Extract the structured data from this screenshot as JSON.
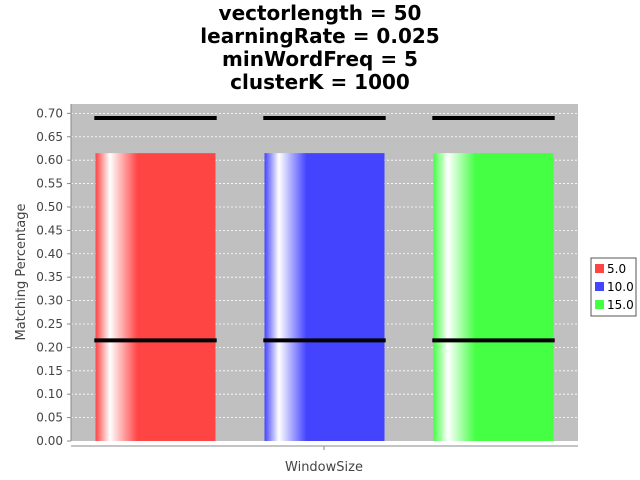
{
  "chart_data": {
    "type": "bar",
    "title_lines": [
      "vectorlength = 50",
      "learningRate = 0.025",
      "minWordFreq = 5",
      "clusterK = 1000"
    ],
    "xlabel": "WindowSize",
    "ylabel": "Matching Percentage",
    "ylim": [
      0,
      0.72
    ],
    "yticks": [
      "0.00",
      "0.05",
      "0.10",
      "0.15",
      "0.20",
      "0.25",
      "0.30",
      "0.35",
      "0.40",
      "0.45",
      "0.50",
      "0.55",
      "0.60",
      "0.65",
      "0.70"
    ],
    "grid": true,
    "legend_position": "right",
    "series": [
      {
        "name": "5.0",
        "value": 0.615,
        "error_low": 0.215,
        "error_high": 0.69,
        "color": "#ff4444"
      },
      {
        "name": "10.0",
        "value": 0.615,
        "error_low": 0.215,
        "error_high": 0.69,
        "color": "#4444ff"
      },
      {
        "name": "15.0",
        "value": 0.615,
        "error_low": 0.215,
        "error_high": 0.69,
        "color": "#44ff44"
      }
    ]
  }
}
